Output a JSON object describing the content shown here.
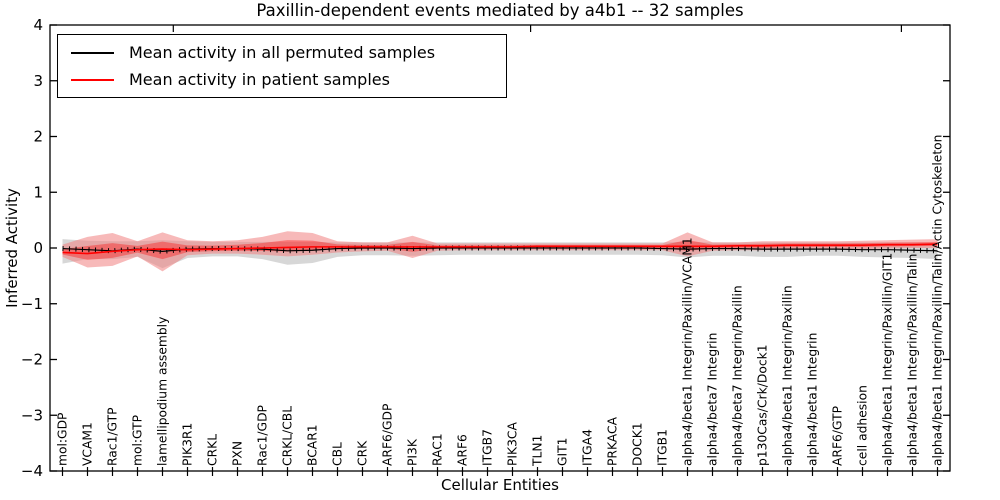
{
  "title": "Paxillin-dependent events mediated by a4b1 -- 32 samples",
  "legend": [
    {
      "label": "Mean activity in all permuted samples",
      "color": "#000000"
    },
    {
      "label": "Mean activity in patient samples",
      "color": "#ff0000"
    }
  ],
  "colors": {
    "permuted_line": "#000000",
    "permuted_band": "#c9c9c9",
    "patient_line": "#ff0000",
    "patient_band": "#f08080",
    "axis": "#000000"
  },
  "chart_data": {
    "type": "line",
    "title": "Paxillin-dependent events mediated by a4b1 -- 32 samples",
    "xlabel": "Cellular Entities",
    "ylabel": "Inferred Activity",
    "ylim": [
      -4,
      4
    ],
    "yticks": [
      4,
      3,
      2,
      1,
      0,
      -1,
      -2,
      -3,
      -4
    ],
    "grid": false,
    "legend_position": "upper left",
    "categories": [
      "mol:GDP",
      "VCAM1",
      "Rac1/GTP",
      "mol:GTP",
      "lamellipodium assembly",
      "PIK3R1",
      "CRKL",
      "PXN",
      "Rac1/GDP",
      "CRKL/CBL",
      "BCAR1",
      "CBL",
      "CRK",
      "ARF6/GDP",
      "PI3K",
      "RAC1",
      "ARF6",
      "ITGB7",
      "PIK3CA",
      "TLN1",
      "GIT1",
      "ITGA4",
      "PRKACA",
      "DOCK1",
      "ITGB1",
      "alpha4/beta1 Integrin/Paxillin/VCAM1",
      "alpha4/beta7 Integrin",
      "alpha4/beta7 Integrin/Paxillin",
      "p130Cas/Crk/Dock1",
      "alpha4/beta1 Integrin/Paxillin",
      "alpha4/beta1 Integrin",
      "ARF6/GTP",
      "cell adhesion",
      "alpha4/beta1 Integrin/Paxillin/GIT1",
      "alpha4/beta1 Integrin/Paxillin/Talin",
      "alpha4/beta1 Integrin/Paxillin/Talin/Actin Cytoskeleton"
    ],
    "series": [
      {
        "name": "Mean activity in all permuted samples",
        "color": "#000000",
        "values": [
          -0.01,
          -0.03,
          -0.05,
          -0.02,
          -0.06,
          -0.02,
          -0.01,
          -0.01,
          -0.02,
          -0.05,
          -0.04,
          -0.01,
          0,
          0,
          -0.01,
          0,
          0,
          0,
          0,
          0,
          0,
          0,
          0,
          0,
          -0.01,
          -0.02,
          -0.01,
          -0.01,
          -0.02,
          -0.02,
          -0.02,
          -0.02,
          -0.03,
          -0.03,
          -0.04,
          -0.05
        ],
        "band_low": [
          -0.28,
          -0.2,
          -0.2,
          -0.16,
          -0.36,
          -0.18,
          -0.15,
          -0.15,
          -0.2,
          -0.3,
          -0.27,
          -0.16,
          -0.13,
          -0.13,
          -0.14,
          -0.13,
          -0.12,
          -0.12,
          -0.12,
          -0.12,
          -0.12,
          -0.12,
          -0.12,
          -0.12,
          -0.13,
          -0.17,
          -0.14,
          -0.14,
          -0.16,
          -0.16,
          -0.14,
          -0.14,
          -0.16,
          -0.17,
          -0.18,
          -0.2
        ],
        "band_high": [
          0.16,
          0.13,
          0.12,
          0.12,
          0.14,
          0.12,
          0.11,
          0.11,
          0.11,
          0.11,
          0.11,
          0.1,
          0.1,
          0.1,
          0.1,
          0.1,
          0.1,
          0.1,
          0.1,
          0.1,
          0.1,
          0.1,
          0.1,
          0.1,
          0.1,
          0.11,
          0.1,
          0.1,
          0.1,
          0.1,
          0.1,
          0.1,
          0.1,
          0.1,
          0.1,
          0.09
        ]
      },
      {
        "name": "Mean activity in patient samples",
        "color": "#ff0000",
        "values": [
          -0.08,
          -0.1,
          -0.06,
          -0.03,
          -0.02,
          -0.03,
          -0.02,
          -0.01,
          0,
          0.01,
          0.02,
          0.02,
          0.02,
          0.02,
          0.02,
          0.02,
          0.02,
          0.02,
          0.02,
          0.03,
          0.03,
          0.03,
          0.03,
          0.03,
          0.03,
          0.03,
          0.03,
          0.04,
          0.04,
          0.05,
          0.05,
          0.05,
          0.05,
          0.06,
          0.06,
          0.07
        ],
        "band_low": [
          -0.16,
          -0.35,
          -0.32,
          -0.15,
          -0.42,
          -0.13,
          -0.1,
          -0.1,
          -0.12,
          -0.15,
          -0.12,
          -0.08,
          -0.06,
          -0.05,
          -0.18,
          -0.05,
          -0.04,
          -0.04,
          -0.04,
          -0.04,
          -0.04,
          -0.04,
          -0.04,
          -0.04,
          -0.04,
          -0.15,
          -0.05,
          -0.04,
          -0.04,
          -0.03,
          -0.02,
          -0.02,
          -0.02,
          -0.01,
          0,
          0
        ],
        "band_high": [
          0.06,
          0.2,
          0.27,
          0.12,
          0.28,
          0.14,
          0.12,
          0.14,
          0.2,
          0.3,
          0.27,
          0.12,
          0.1,
          0.1,
          0.22,
          0.08,
          0.08,
          0.08,
          0.08,
          0.08,
          0.08,
          0.08,
          0.08,
          0.08,
          0.08,
          0.28,
          0.1,
          0.1,
          0.12,
          0.12,
          0.12,
          0.12,
          0.13,
          0.14,
          0.15,
          0.16
        ]
      }
    ]
  }
}
